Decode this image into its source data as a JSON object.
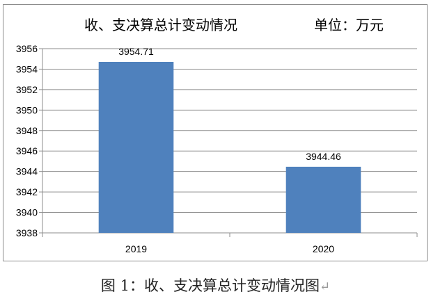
{
  "chart_data": {
    "type": "bar",
    "title": "收、支决算总计变动情况",
    "unit_label": "单位：万元",
    "categories": [
      "2019",
      "2020"
    ],
    "values": [
      3954.71,
      3944.46
    ],
    "data_labels": [
      "3954.71",
      "3944.46"
    ],
    "ylim": [
      3938,
      3956
    ],
    "y_ticks": [
      "3938",
      "3940",
      "3942",
      "3944",
      "3946",
      "3948",
      "3950",
      "3952",
      "3954",
      "3956"
    ],
    "grid": true,
    "legend": "none",
    "bar_color": "#4f81bd"
  },
  "caption": "图 1：收、支决算总计变动情况图",
  "caption_return_mark": "↵"
}
